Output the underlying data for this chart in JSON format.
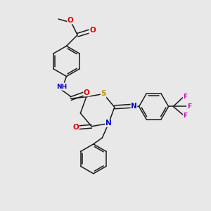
{
  "bg_color": "#e8e8e8",
  "bond_color": "#1a1a1a",
  "atom_colors": {
    "O": "#dd0000",
    "N": "#0000cc",
    "S": "#b8960c",
    "F": "#cc00bb",
    "H": "#555555",
    "C": "#1a1a1a"
  },
  "font_size": 6.5,
  "line_width": 1.1
}
